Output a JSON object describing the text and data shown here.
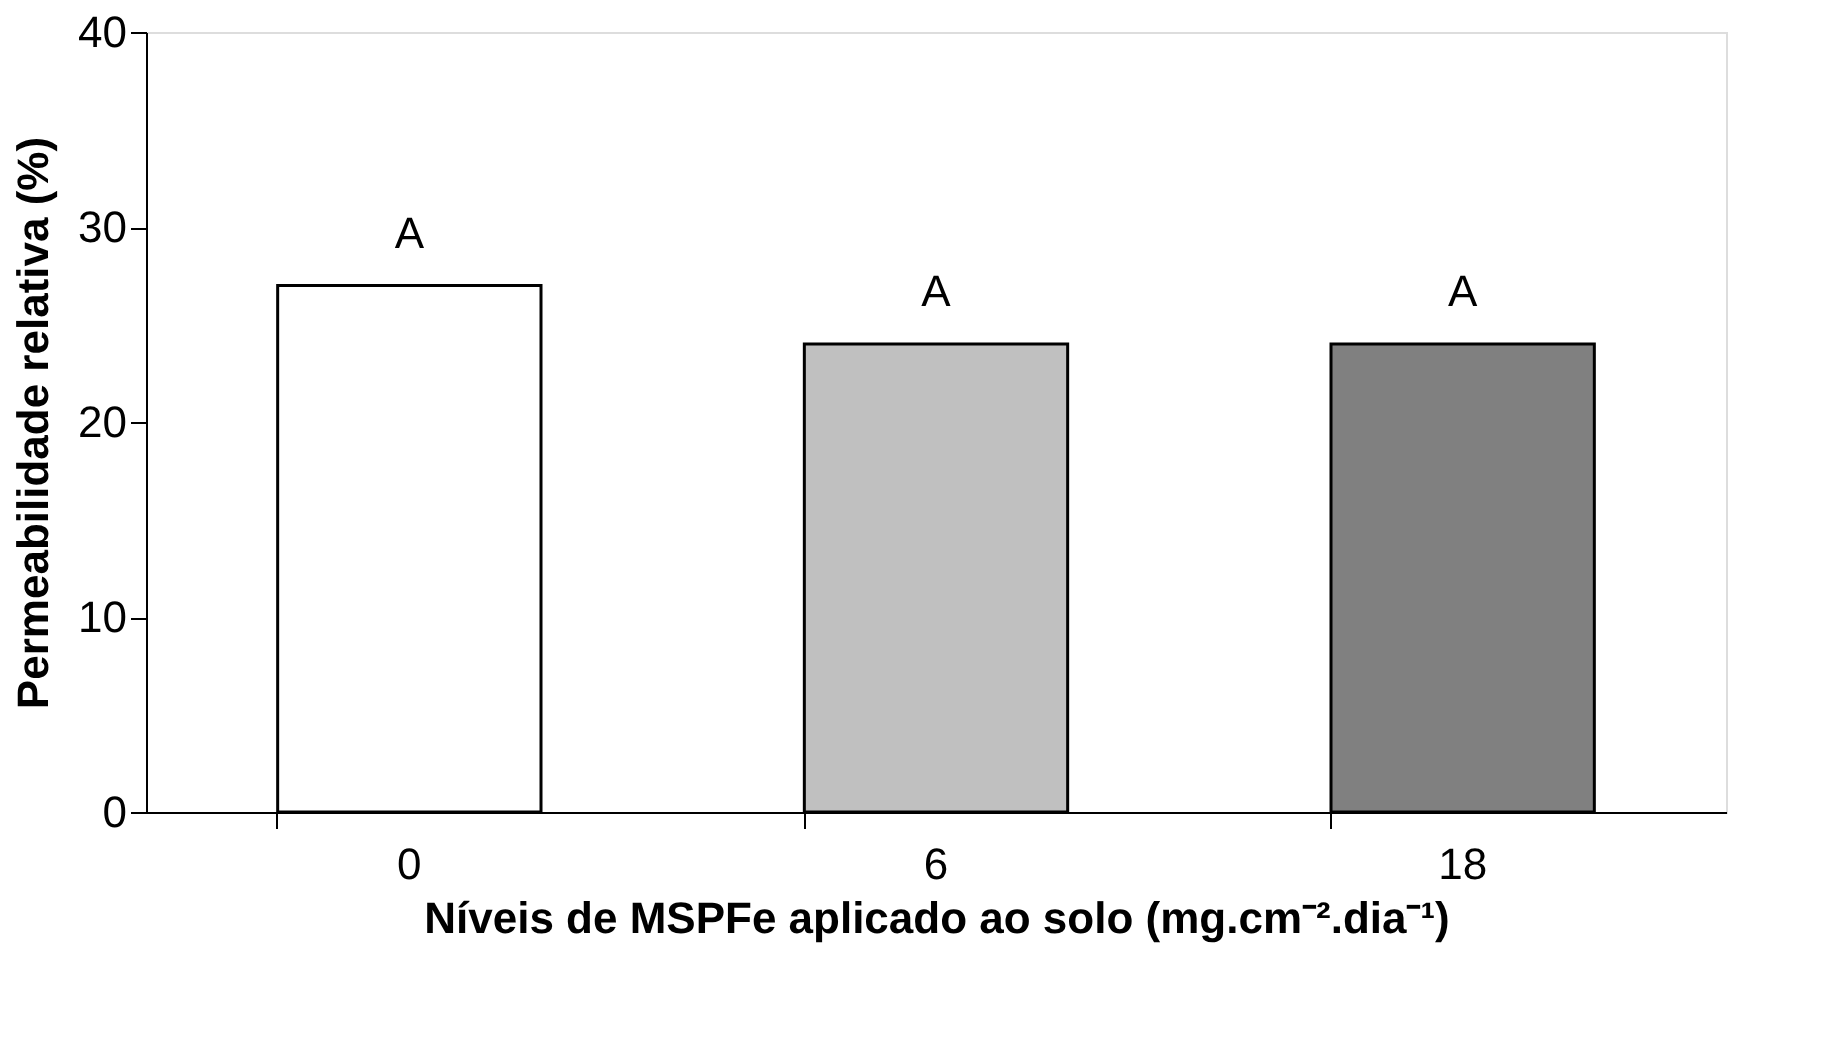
{
  "chart_data": {
    "type": "bar",
    "xlabel": "Níveis de MSPFe aplicado ao solo (mg.cm⁻².dia⁻¹)",
    "ylabel": "Permeabilidade relativa (%)",
    "categories": [
      "0",
      "6",
      "18"
    ],
    "values": [
      27,
      24,
      24
    ],
    "colors": [
      "#ffffff",
      "#c0c0c0",
      "#808080"
    ],
    "ylim": [
      0,
      40
    ],
    "yticks": [
      0,
      10,
      20,
      30,
      40
    ],
    "grid": false,
    "annotations": [
      {
        "text": "A",
        "x": "0",
        "y": 27
      },
      {
        "text": "A",
        "x": "6",
        "y": 24
      },
      {
        "text": "A",
        "x": "18",
        "y": 24
      }
    ]
  }
}
